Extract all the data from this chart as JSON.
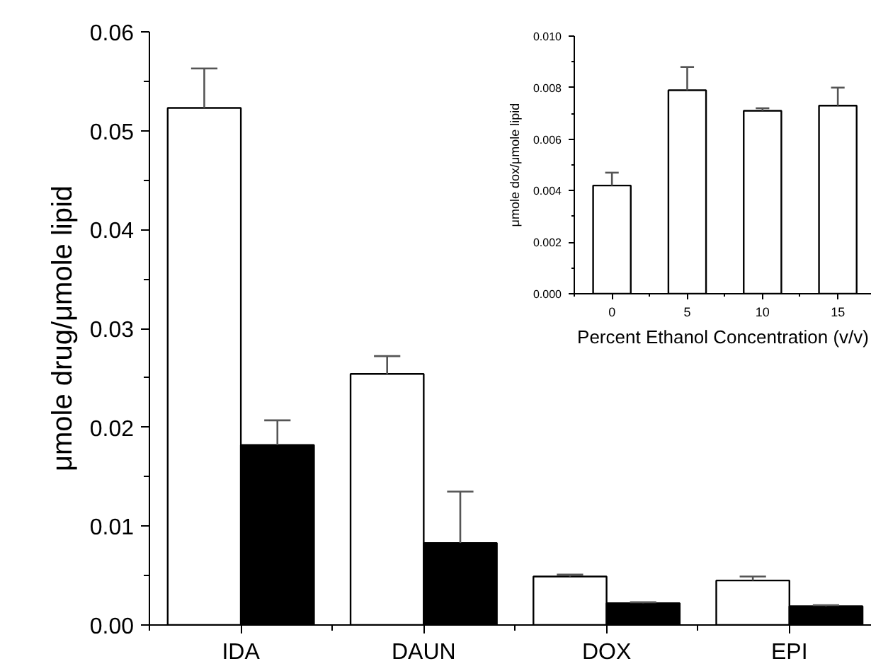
{
  "chart_data": [
    {
      "type": "bar",
      "categories": [
        "IDA",
        "DAUN",
        "DOX",
        "EPI"
      ],
      "ylabel": "μmole drug/μmole lipid",
      "ylim": [
        0,
        0.06
      ],
      "yticks": [
        {
          "value": 0,
          "label": "0.00"
        },
        {
          "value": 0.005,
          "label": null
        },
        {
          "value": 0.01,
          "label": "0.01"
        },
        {
          "value": 0.015,
          "label": null
        },
        {
          "value": 0.02,
          "label": "0.02"
        },
        {
          "value": 0.025,
          "label": null
        },
        {
          "value": 0.03,
          "label": "0.03"
        },
        {
          "value": 0.035,
          "label": null
        },
        {
          "value": 0.04,
          "label": "0.04"
        },
        {
          "value": 0.045,
          "label": null
        },
        {
          "value": 0.05,
          "label": "0.05"
        },
        {
          "value": 0.055,
          "label": null
        },
        {
          "value": 0.06,
          "label": "0.06"
        }
      ],
      "series": [
        {
          "color": "#ffffff",
          "values": [
            0.0523,
            0.0254,
            0.0049,
            0.0045
          ],
          "errors": [
            [
              0.0523,
              0.0563
            ],
            [
              0.0254,
              0.0272
            ],
            [
              0.0049,
              0.0051
            ],
            [
              0.0045,
              0.0049
            ]
          ]
        },
        {
          "color": "#000000",
          "values": [
            0.0182,
            0.0083,
            0.0022,
            0.0019
          ],
          "errors": [
            [
              0.0182,
              0.0207
            ],
            [
              0.0083,
              0.0135
            ],
            [
              0.0022,
              0.0023
            ],
            [
              0.0019,
              0.002
            ]
          ]
        }
      ],
      "grid": false
    },
    {
      "type": "bar",
      "categories": [
        "0",
        "5",
        "10",
        "15"
      ],
      "xlabel": "Percent Ethanol Concentration (v/v)",
      "ylabel": "μmole dox/μmole lipid",
      "ylim": [
        0,
        0.01
      ],
      "yticks": [
        {
          "value": 0,
          "label": "0.000"
        },
        {
          "value": 0.001,
          "label": null
        },
        {
          "value": 0.002,
          "label": "0.002"
        },
        {
          "value": 0.003,
          "label": null
        },
        {
          "value": 0.004,
          "label": "0.004"
        },
        {
          "value": 0.005,
          "label": null
        },
        {
          "value": 0.006,
          "label": "0.006"
        },
        {
          "value": 0.007,
          "label": null
        },
        {
          "value": 0.008,
          "label": "0.008"
        },
        {
          "value": 0.009,
          "label": null
        },
        {
          "value": 0.01,
          "label": "0.010"
        }
      ],
      "color": "#ffffff",
      "values": [
        0.0042,
        0.0079,
        0.0071,
        0.0073
      ],
      "errors": [
        [
          0.0042,
          0.0047
        ],
        [
          0.0079,
          0.0088
        ],
        [
          0.0071,
          0.0072
        ],
        [
          0.0073,
          0.008
        ]
      ],
      "grid": false
    }
  ]
}
